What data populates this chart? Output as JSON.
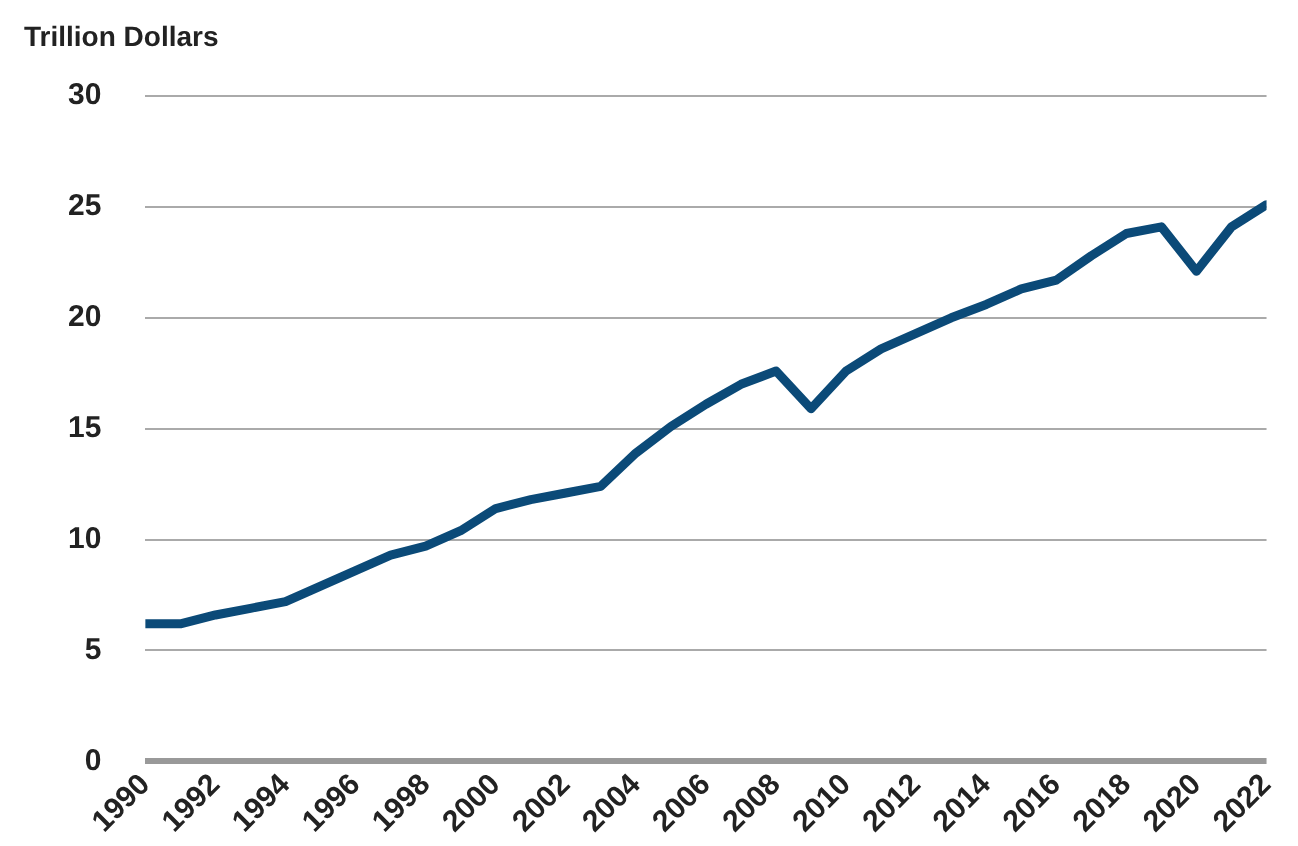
{
  "chart_data": {
    "type": "line",
    "ylabel": "Trillion Dollars",
    "x": [
      1990,
      1991,
      1992,
      1993,
      1994,
      1995,
      1996,
      1997,
      1998,
      1999,
      2000,
      2001,
      2002,
      2003,
      2004,
      2005,
      2006,
      2007,
      2008,
      2009,
      2010,
      2011,
      2012,
      2013,
      2014,
      2015,
      2016,
      2017,
      2018,
      2019,
      2020,
      2021,
      2022
    ],
    "series": [
      {
        "color": "#0b4a78",
        "values": [
          6.2,
          6.2,
          6.6,
          6.9,
          7.2,
          7.9,
          8.6,
          9.3,
          9.7,
          10.4,
          11.4,
          11.8,
          12.1,
          12.4,
          13.9,
          15.1,
          16.1,
          17.0,
          17.6,
          15.9,
          17.6,
          18.6,
          19.3,
          20.0,
          20.6,
          21.3,
          21.7,
          22.8,
          23.8,
          24.1,
          22.1,
          24.1,
          25.1
        ]
      }
    ],
    "xlim": [
      1990,
      2022
    ],
    "xticks": [
      1990,
      1992,
      1994,
      1996,
      1998,
      2000,
      2002,
      2004,
      2006,
      2008,
      2010,
      2012,
      2014,
      2016,
      2018,
      2020,
      2022
    ],
    "ylim": [
      0,
      30
    ],
    "yticks": [
      0,
      5,
      10,
      15,
      20,
      25,
      30
    ],
    "grid": "y",
    "marker": "none",
    "line_style": "solid",
    "legend": false
  }
}
